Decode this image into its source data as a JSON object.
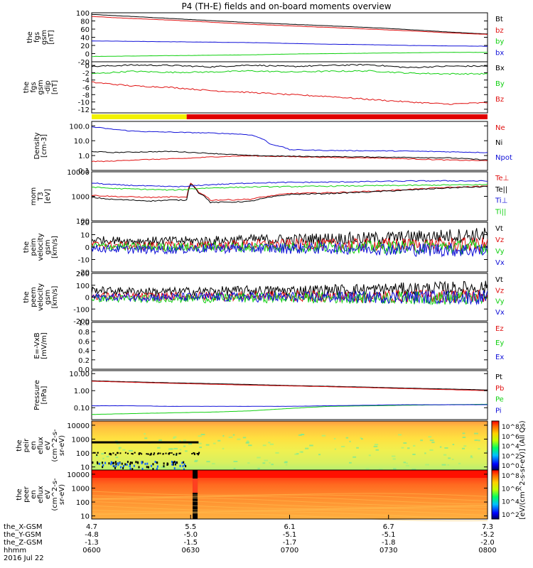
{
  "title": "P4 (TH-E) fields and on-board moments overview",
  "colors": {
    "black": "#000000",
    "red": "#e01010",
    "green": "#10d010",
    "blue": "#1010d8",
    "yellow": "#f2f200",
    "quality_red": "#e00000"
  },
  "chart_data": [
    {
      "id": "fgs-gsm",
      "type": "line",
      "ylabel": [
        "the",
        "fgs",
        "gsm",
        "[nT]"
      ],
      "ylim": [
        -20,
        100
      ],
      "yticks": [
        "100",
        "80",
        "60",
        "40",
        "20",
        "0",
        "-20"
      ],
      "ytick_values": [
        100,
        80,
        60,
        40,
        20,
        0,
        -20
      ],
      "x": [
        0,
        0.1,
        0.2,
        0.3,
        0.4,
        0.5,
        0.6,
        0.7,
        0.8,
        0.9,
        1.0
      ],
      "series": [
        {
          "name": "Bt",
          "color": "#000000",
          "values": [
            96,
            91,
            86,
            81,
            76,
            72,
            68,
            64,
            59,
            53,
            48
          ]
        },
        {
          "name": "bz",
          "color": "#e01010",
          "values": [
            91,
            86,
            82,
            77,
            72,
            68,
            64,
            60,
            56,
            51,
            47
          ]
        },
        {
          "name": "by",
          "color": "#10d010",
          "values": [
            -7,
            -6,
            -5,
            -4,
            -3,
            -1,
            0,
            1,
            2,
            3,
            3
          ]
        },
        {
          "name": "bx",
          "color": "#1010d8",
          "values": [
            31,
            30,
            29,
            28,
            27,
            25,
            23,
            22,
            20,
            19,
            18
          ]
        }
      ]
    },
    {
      "id": "fgs-gsm-dip",
      "type": "line",
      "ylabel": [
        "the",
        "fgs",
        "gsm",
        "-dip",
        "[nT]"
      ],
      "ylim": [
        -13,
        1
      ],
      "yticks": [
        "0",
        "-2",
        "-4",
        "-6",
        "-8",
        "-10",
        "-12"
      ],
      "ytick_values": [
        0,
        -2,
        -4,
        -6,
        -8,
        -10,
        -12
      ],
      "x": [
        0,
        0.1,
        0.2,
        0.3,
        0.4,
        0.5,
        0.6,
        0.7,
        0.8,
        0.9,
        1.0
      ],
      "series": [
        {
          "name": "Bx",
          "color": "#000000",
          "values": [
            -0.3,
            0.1,
            0.0,
            -0.4,
            0.1,
            -0.3,
            0.0,
            0.2,
            -0.6,
            -0.2,
            -0.2
          ]
        },
        {
          "name": "By",
          "color": "#10d010",
          "values": [
            -2.3,
            -1.6,
            -1.9,
            -1.8,
            -1.5,
            -1.8,
            -1.6,
            -1.5,
            -2.1,
            -2.3,
            -2.3
          ]
        },
        {
          "name": "Bz",
          "color": "#e01010",
          "values": [
            -4.6,
            -5.6,
            -6.0,
            -6.9,
            -7.4,
            -8.0,
            -8.5,
            -9.3,
            -10.0,
            -10.6,
            -10.2
          ]
        }
      ]
    },
    {
      "id": "mode-bar",
      "type": "bar",
      "segments": [
        {
          "from": 0,
          "to": 0.24,
          "color": "#f2f200"
        },
        {
          "from": 0.24,
          "to": 1.0,
          "color": "#e00000"
        }
      ]
    },
    {
      "id": "density",
      "type": "line",
      "ylabel": [
        "Density",
        "[cm-3]"
      ],
      "yscale": "log",
      "ylim": [
        0.1,
        200
      ],
      "yticks": [
        "100.0",
        "10.0",
        "1.0",
        "0.1"
      ],
      "ytick_values": [
        100,
        10,
        1,
        0.1
      ],
      "x": [
        0,
        0.05,
        0.1,
        0.15,
        0.2,
        0.24,
        0.3,
        0.35,
        0.4,
        0.45,
        0.5,
        0.6,
        0.7,
        0.8,
        0.9,
        1.0
      ],
      "series": [
        {
          "name": "Ne",
          "color": "#e01010",
          "values": [
            0.4,
            0.42,
            0.5,
            0.55,
            0.6,
            0.65,
            0.8,
            0.9,
            0.95,
            0.9,
            0.85,
            0.75,
            0.7,
            0.6,
            0.5,
            0.45
          ]
        },
        {
          "name": "Ni",
          "color": "#000000",
          "values": [
            1.9,
            1.6,
            1.7,
            1.8,
            1.9,
            1.7,
            1.4,
            1.2,
            1.0,
            0.95,
            0.9,
            0.85,
            0.8,
            0.75,
            0.7,
            0.5
          ]
        },
        {
          "name": "Npot",
          "color": "#1010d8",
          "values": [
            85,
            60,
            45,
            40,
            38,
            36,
            33,
            30,
            25,
            6,
            2.5,
            2.2,
            2.1,
            2.0,
            1.8,
            1.6
          ]
        }
      ]
    },
    {
      "id": "mom",
      "type": "line",
      "ylabel": [
        "mom",
        "T3",
        "[eV]"
      ],
      "yscale": "log",
      "ylim": [
        100,
        10000
      ],
      "yticks": [
        "10000",
        "1000",
        "100"
      ],
      "ytick_values": [
        10000,
        1000,
        100
      ],
      "x": [
        0,
        0.05,
        0.1,
        0.15,
        0.2,
        0.24,
        0.25,
        0.27,
        0.3,
        0.35,
        0.4,
        0.5,
        0.6,
        0.7,
        0.8,
        0.9,
        1.0
      ],
      "series": [
        {
          "name": "Te⊥",
          "color": "#e01010",
          "values": [
            1100,
            1000,
            950,
            900,
            950,
            900,
            3400,
            1500,
            700,
            720,
            760,
            1300,
            1400,
            1600,
            1900,
            2300,
            2600
          ]
        },
        {
          "name": "Te||",
          "color": "#000000",
          "values": [
            900,
            750,
            700,
            650,
            700,
            700,
            3300,
            1400,
            560,
            580,
            620,
            1200,
            1300,
            1500,
            1800,
            2200,
            2500
          ]
        },
        {
          "name": "Ti⊥",
          "color": "#1010d8",
          "values": [
            3500,
            3000,
            2800,
            2600,
            2500,
            2500,
            2600,
            2800,
            3000,
            3200,
            3500,
            3700,
            3800,
            4000,
            4200,
            4300,
            4200
          ]
        },
        {
          "name": "Ti||",
          "color": "#10d010",
          "values": [
            2400,
            2100,
            2000,
            1900,
            1800,
            1900,
            2000,
            2100,
            2200,
            2300,
            2400,
            2500,
            2600,
            2700,
            2800,
            2900,
            3000
          ]
        }
      ]
    },
    {
      "id": "peim-gsm",
      "type": "line",
      "ylabel": [
        "the",
        "peim",
        "velocity",
        "gsm",
        "[km/s]"
      ],
      "ylim": [
        -20,
        20
      ],
      "yticks": [
        "20",
        "10",
        "0",
        "-10",
        "-20"
      ],
      "ytick_values": [
        20,
        10,
        0,
        -10,
        -20
      ],
      "x": [
        0,
        0.1,
        0.2,
        0.3,
        0.4,
        0.5,
        0.6,
        0.7,
        0.8,
        0.9,
        1.0
      ],
      "series": [
        {
          "name": "Vt",
          "color": "#000000",
          "values": [
            6,
            5,
            5,
            5,
            6,
            6,
            7,
            7,
            8,
            9,
            10
          ]
        },
        {
          "name": "Vz",
          "color": "#e01010",
          "values": [
            2,
            1,
            1,
            1,
            2,
            2,
            2,
            2,
            2,
            2,
            2
          ]
        },
        {
          "name": "Vy",
          "color": "#10d010",
          "values": [
            1,
            0,
            0,
            0,
            0,
            0,
            0,
            0,
            0,
            0,
            0
          ]
        },
        {
          "name": "Vx",
          "color": "#1010d8",
          "values": [
            -1,
            -2,
            -2,
            -1,
            -1,
            -1,
            -1,
            -1,
            -2,
            -2,
            -3
          ]
        }
      ]
    },
    {
      "id": "peem-gsm",
      "type": "line",
      "ylabel": [
        "the",
        "peem",
        "velocity",
        "gsm",
        "[km/s]"
      ],
      "ylim": [
        -200,
        200
      ],
      "yticks": [
        "200",
        "100",
        "0",
        "-100",
        "-200"
      ],
      "ytick_values": [
        200,
        100,
        0,
        -100,
        -200
      ],
      "x": [
        0,
        0.1,
        0.2,
        0.3,
        0.4,
        0.5,
        0.6,
        0.7,
        0.8,
        0.9,
        1.0
      ],
      "series": [
        {
          "name": "Vt",
          "color": "#000000",
          "values": [
            60,
            50,
            45,
            50,
            55,
            55,
            60,
            65,
            70,
            75,
            80
          ]
        },
        {
          "name": "Vz",
          "color": "#e01010",
          "values": [
            10,
            5,
            5,
            10,
            10,
            10,
            5,
            5,
            10,
            10,
            10
          ]
        },
        {
          "name": "Vy",
          "color": "#10d010",
          "values": [
            -10,
            -15,
            -10,
            -10,
            -5,
            -5,
            -5,
            -5,
            -5,
            -10,
            -10
          ]
        },
        {
          "name": "Vx",
          "color": "#1010d8",
          "values": [
            0,
            0,
            0,
            0,
            0,
            0,
            0,
            0,
            0,
            0,
            0
          ]
        }
      ]
    },
    {
      "id": "efield",
      "type": "line",
      "ylabel": [
        "E=-VxB",
        "[mV/m]"
      ],
      "ylim": [
        0,
        1.0
      ],
      "yticks": [
        "1.0",
        "0.8",
        "0.6",
        "0.4",
        "0.2",
        "0.0"
      ],
      "ytick_values": [
        1.0,
        0.8,
        0.6,
        0.4,
        0.2,
        0.0
      ],
      "series": [
        {
          "name": "Ez",
          "color": "#e01010",
          "values": []
        },
        {
          "name": "Ey",
          "color": "#10d010",
          "values": []
        },
        {
          "name": "Ex",
          "color": "#1010d8",
          "values": []
        }
      ]
    },
    {
      "id": "pressure",
      "type": "line",
      "ylabel": [
        "Pressure",
        "[nPa]"
      ],
      "yscale": "log",
      "ylim": [
        0.02,
        15
      ],
      "yticks": [
        "10.00",
        "1.00",
        "0.10"
      ],
      "ytick_values": [
        10,
        1,
        0.1
      ],
      "x": [
        0,
        0.1,
        0.2,
        0.3,
        0.4,
        0.5,
        0.6,
        0.7,
        0.8,
        0.9,
        1.0
      ],
      "series": [
        {
          "name": "Pt",
          "color": "#000000",
          "values": [
            3.8,
            3.3,
            2.9,
            2.6,
            2.3,
            2.0,
            1.8,
            1.6,
            1.4,
            1.25,
            1.1
          ]
        },
        {
          "name": "Pb",
          "color": "#e01010",
          "values": [
            3.6,
            3.1,
            2.7,
            2.4,
            2.1,
            1.9,
            1.7,
            1.5,
            1.3,
            1.15,
            1.0
          ]
        },
        {
          "name": "Pe",
          "color": "#10d010",
          "values": [
            0.04,
            0.045,
            0.05,
            0.055,
            0.065,
            0.09,
            0.12,
            0.13,
            0.14,
            0.15,
            0.16
          ]
        },
        {
          "name": "Pi",
          "color": "#1010d8",
          "values": [
            0.13,
            0.13,
            0.12,
            0.12,
            0.12,
            0.12,
            0.13,
            0.14,
            0.15,
            0.15,
            0.15
          ]
        }
      ]
    },
    {
      "id": "peir-spec",
      "type": "heatmap",
      "ylabel": [
        "the",
        "peir",
        "en",
        "eflux",
        "eV",
        "(cm^2-s-",
        "sr-eV)"
      ],
      "yscale": "log",
      "ylim": [
        6,
        20000
      ],
      "yticks": [
        "10000",
        "1000",
        "100",
        "10"
      ],
      "ytick_values": [
        10000,
        1000,
        100,
        10
      ]
    },
    {
      "id": "peer-spec",
      "type": "heatmap",
      "ylabel": [
        "the",
        "peer",
        "en",
        "eflux",
        "eV",
        "(cm^2-s-",
        "sr-eV)"
      ],
      "yscale": "log",
      "ylim": [
        6,
        20000
      ],
      "yticks": [
        "10000",
        "1000",
        "100",
        "10"
      ],
      "ytick_values": [
        10000,
        1000,
        100,
        10
      ]
    }
  ],
  "colorbar": {
    "label": "[eV/(cm^2-s-sr-eV)] (All Qs)",
    "ticks": [
      "10^8",
      "10^6",
      "10^4",
      "10^2",
      "10^0"
    ]
  },
  "colorbar2": {
    "ticks": [
      "10^8",
      "10^6",
      "10^4",
      "10^2"
    ]
  },
  "x_axis": {
    "rows": [
      {
        "label": "the_X-GSM",
        "values": [
          "4.7",
          "5.5",
          "6.1",
          "6.7",
          "7.3"
        ]
      },
      {
        "label": "the_Y-GSM",
        "values": [
          "-4.8",
          "-5.0",
          "-5.1",
          "-5.1",
          "-5.2"
        ]
      },
      {
        "label": "the_Z-GSM",
        "values": [
          "-1.3",
          "-1.5",
          "-1.7",
          "-1.8",
          "-2.0"
        ]
      },
      {
        "label": "hhmm",
        "values": [
          "0600",
          "0630",
          "0700",
          "0730",
          "0800"
        ]
      }
    ],
    "date": "2016 Jul 22"
  }
}
